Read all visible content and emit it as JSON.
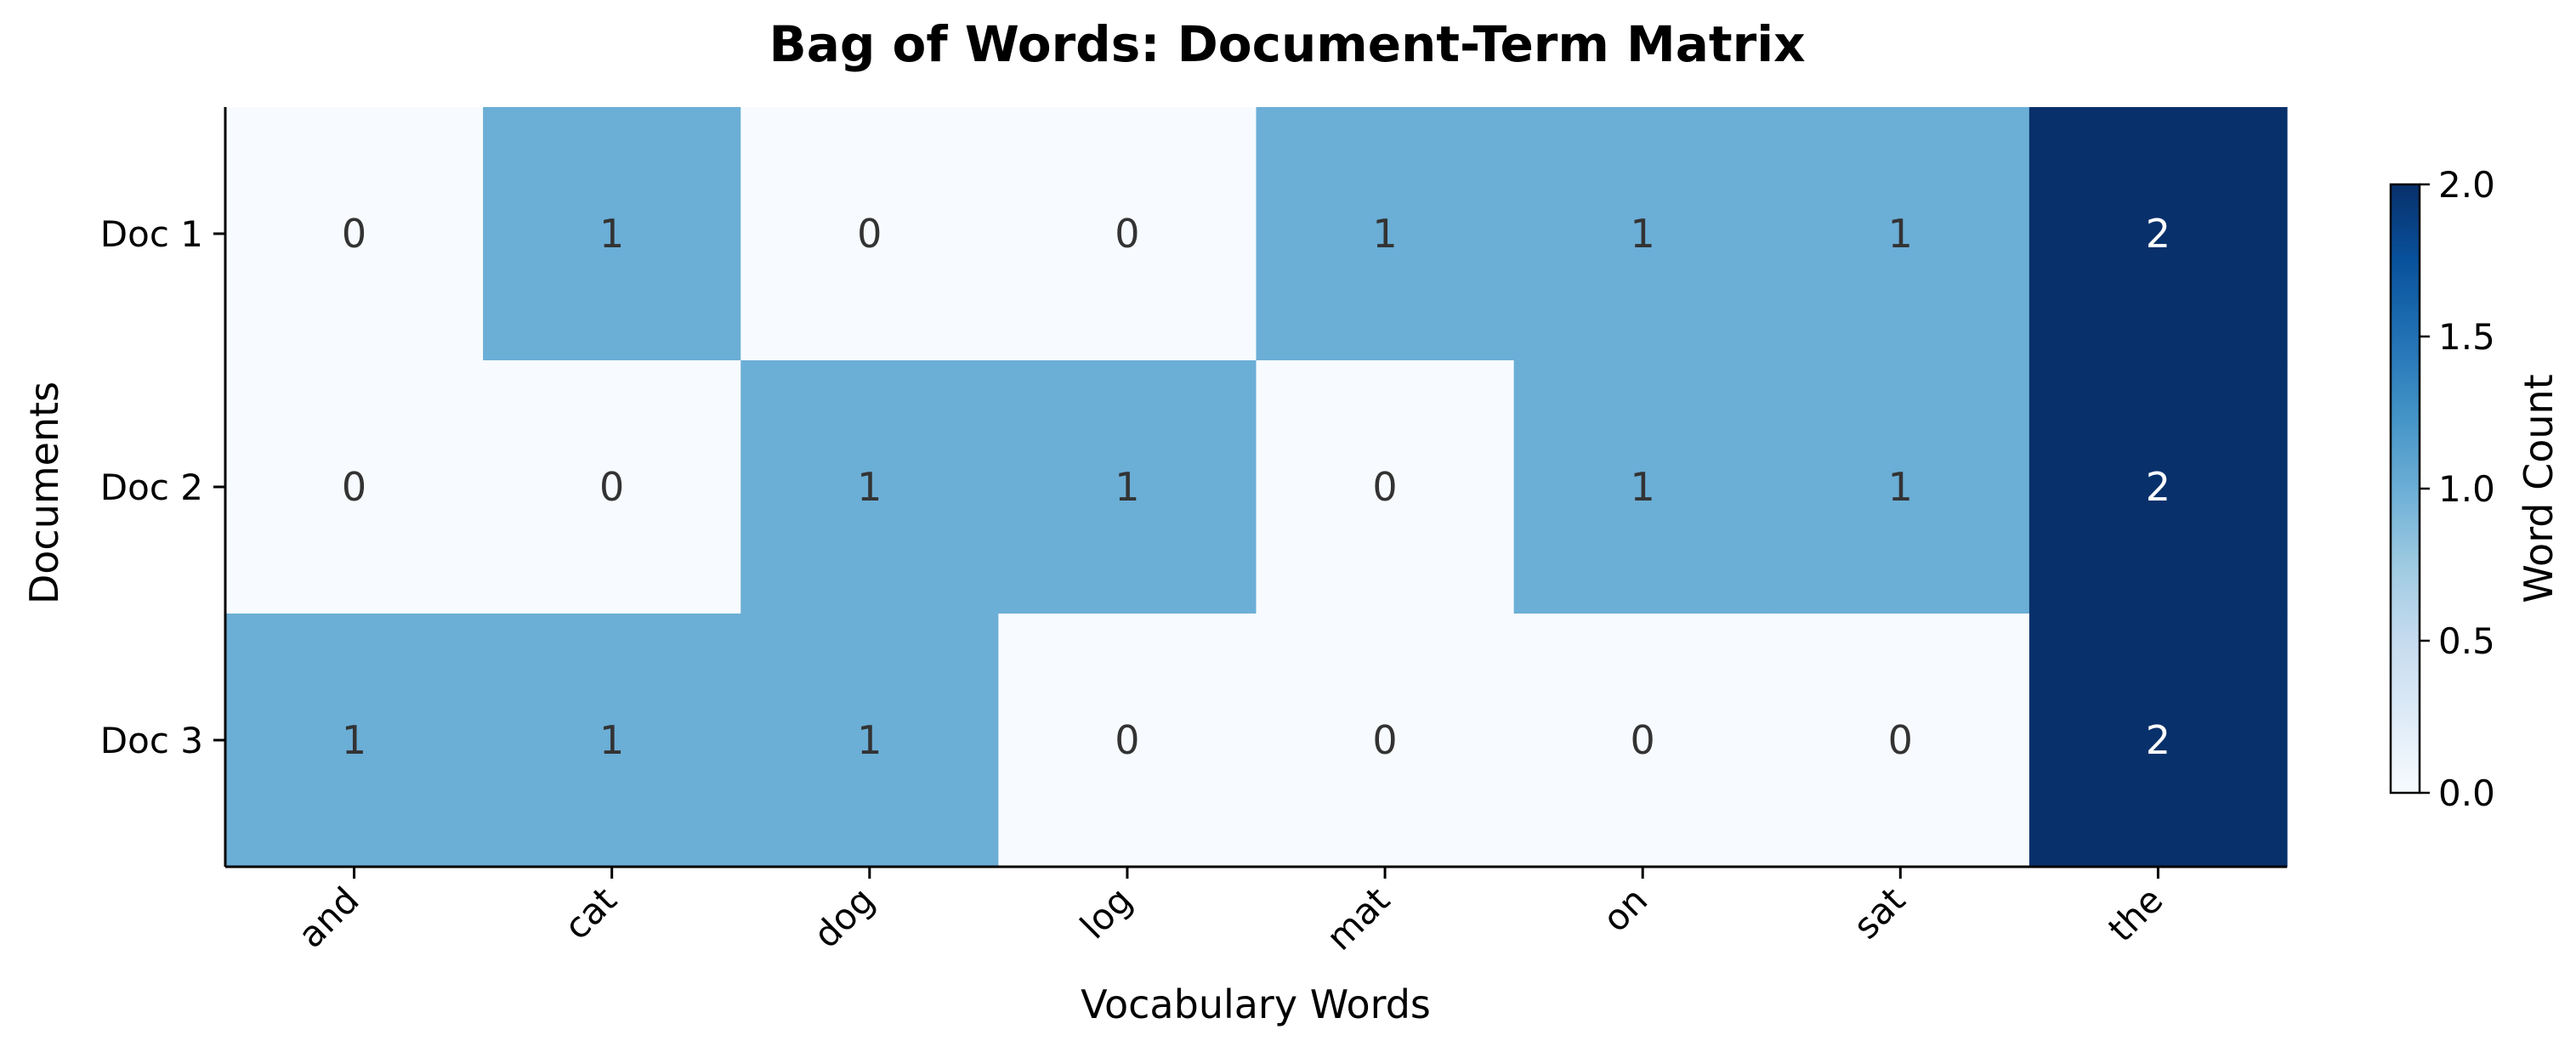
{
  "chart_data": {
    "type": "heatmap",
    "title": "Bag of Words: Document-Term Matrix",
    "xlabel": "Vocabulary Words",
    "ylabel": "Documents",
    "x_categories": [
      "and",
      "cat",
      "dog",
      "log",
      "mat",
      "on",
      "sat",
      "the"
    ],
    "y_categories": [
      "Doc 1",
      "Doc 2",
      "Doc 3"
    ],
    "values": [
      [
        0,
        1,
        0,
        0,
        1,
        1,
        1,
        2
      ],
      [
        0,
        0,
        1,
        1,
        0,
        1,
        1,
        2
      ],
      [
        1,
        1,
        1,
        0,
        0,
        0,
        0,
        2
      ]
    ],
    "colorbar": {
      "label": "Word Count",
      "range": [
        0,
        2
      ],
      "ticks": [
        {
          "value": 0.0,
          "label": "0.0"
        },
        {
          "value": 0.5,
          "label": "0.5"
        },
        {
          "value": 1.0,
          "label": "1.0"
        },
        {
          "value": 1.5,
          "label": "1.5"
        },
        {
          "value": 2.0,
          "label": "2.0"
        }
      ]
    },
    "colormap": [
      "#f7fbff",
      "#deebf7",
      "#c6dbef",
      "#9ecae1",
      "#6baed6",
      "#4292c6",
      "#2171b5",
      "#08519c",
      "#08306b"
    ],
    "text_colors": {
      "light_cell": "#333333",
      "dark_cell": "#ffffff"
    },
    "grid": false,
    "legend": "colorbar-right"
  }
}
